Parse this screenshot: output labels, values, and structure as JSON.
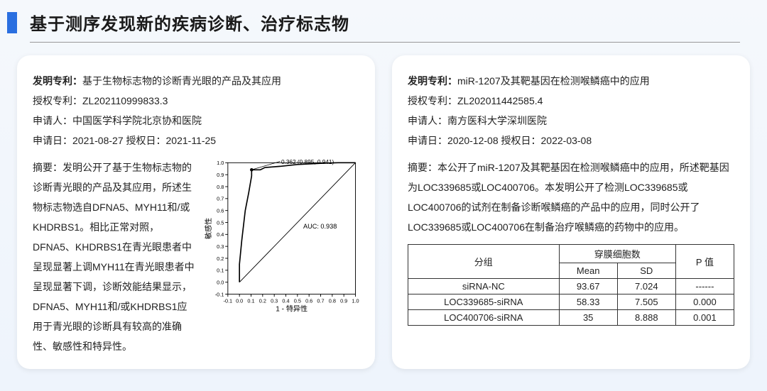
{
  "title": "基于测序发现新的疾病诊断、治疗标志物",
  "left": {
    "patent_label": "发明专利：",
    "patent_title": "基于生物标志物的诊断青光眼的产品及其应用",
    "auth_no_label": "授权专利：",
    "auth_no": "ZL202110999833.3",
    "applicant_label": "申请人：",
    "applicant": "中国医学科学院北京协和医院",
    "apply_date_label": "申请日：",
    "apply_date": "2021-08-27",
    "grant_date_label": " 授权日：",
    "grant_date": "2021-11-25",
    "abstract_label": "摘要：",
    "abstract": "发明公开了基于生物标志物的诊断青光眼的产品及其应用，所述生物标志物选自DFNA5、MYH11和/或KHDRBS1。相比正常对照，DFNA5、KHDRBS1在青光眼患者中呈现显著上调MYH11在青光眼患者中呈现显著下调，诊断效能结果显示，DFNA5、MYH11和/或KHDRBS1应用于青光眼的诊断具有较高的准确性、敏感性和特异性。",
    "roc": {
      "type": "line",
      "xlim": [
        -0.1,
        1.0
      ],
      "ylim": [
        -0.1,
        1.0
      ],
      "xticks": [
        -0.1,
        0.0,
        0.1,
        0.2,
        0.3,
        0.4,
        0.5,
        0.6,
        0.7,
        0.8,
        0.9,
        1.0
      ],
      "yticks": [
        -0.1,
        0.0,
        0.1,
        0.2,
        0.3,
        0.4,
        0.5,
        0.6,
        0.7,
        0.8,
        0.9,
        1.0
      ],
      "xlabel": "1 - 特异性",
      "ylabel": "敏感性",
      "auc_text": "AUC: 0.938",
      "point_label": "0.362 (0.895, 0.941)",
      "curve_points": [
        [
          0.0,
          0.0
        ],
        [
          0.0,
          0.15
        ],
        [
          0.02,
          0.35
        ],
        [
          0.05,
          0.6
        ],
        [
          0.08,
          0.75
        ],
        [
          0.105,
          0.89
        ],
        [
          0.105,
          0.941
        ],
        [
          0.18,
          0.941
        ],
        [
          0.22,
          0.96
        ],
        [
          0.35,
          0.97
        ],
        [
          0.5,
          0.985
        ],
        [
          0.7,
          0.995
        ],
        [
          0.85,
          1.0
        ],
        [
          1.0,
          1.0
        ]
      ],
      "marker": [
        0.105,
        0.941
      ],
      "line_color": "#000000",
      "diag_color": "#000000",
      "background_color": "#ffffff",
      "axis_color": "#000000",
      "axis_fontsize": 8
    }
  },
  "right": {
    "patent_label": "发明专利：",
    "patent_title": "miR-1207及其靶基因在检测喉鳞癌中的应用",
    "auth_no_label": "授权专利：",
    "auth_no": "ZL202011442585.4",
    "applicant_label": "申请人：",
    "applicant": "南方医科大学深圳医院",
    "apply_date_label": "申请日：",
    "apply_date": "2020-12-08",
    "grant_date_label": " 授权日：",
    "grant_date": "2022-03-08",
    "abstract_label": "摘要：",
    "abstract": "本公开了miR-1207及其靶基因在检测喉鳞癌中的应用，所述靶基因为LOC339685或LOC400706。本发明公开了检测LOC339685或LOC400706的试剂在制备诊断喉鳞癌的产品中的应用，同时公开了LOC339685或LOC400706在制备治疗喉鳞癌的药物中的应用。",
    "table": {
      "type": "table",
      "header_group": "分组",
      "header_span": "穿膜细胞数",
      "header_mean": "Mean",
      "header_sd": "SD",
      "header_p": "P 值",
      "rows": [
        {
          "group": "siRNA-NC",
          "mean": "93.67",
          "sd": "7.024",
          "p": "------"
        },
        {
          "group": "LOC339685-siRNA",
          "mean": "58.33",
          "sd": "7.505",
          "p": "0.000"
        },
        {
          "group": "LOC400706-siRNA",
          "mean": "35",
          "sd": "8.888",
          "p": "0.001"
        }
      ],
      "border_color": "#333333",
      "font_size": 13
    }
  }
}
